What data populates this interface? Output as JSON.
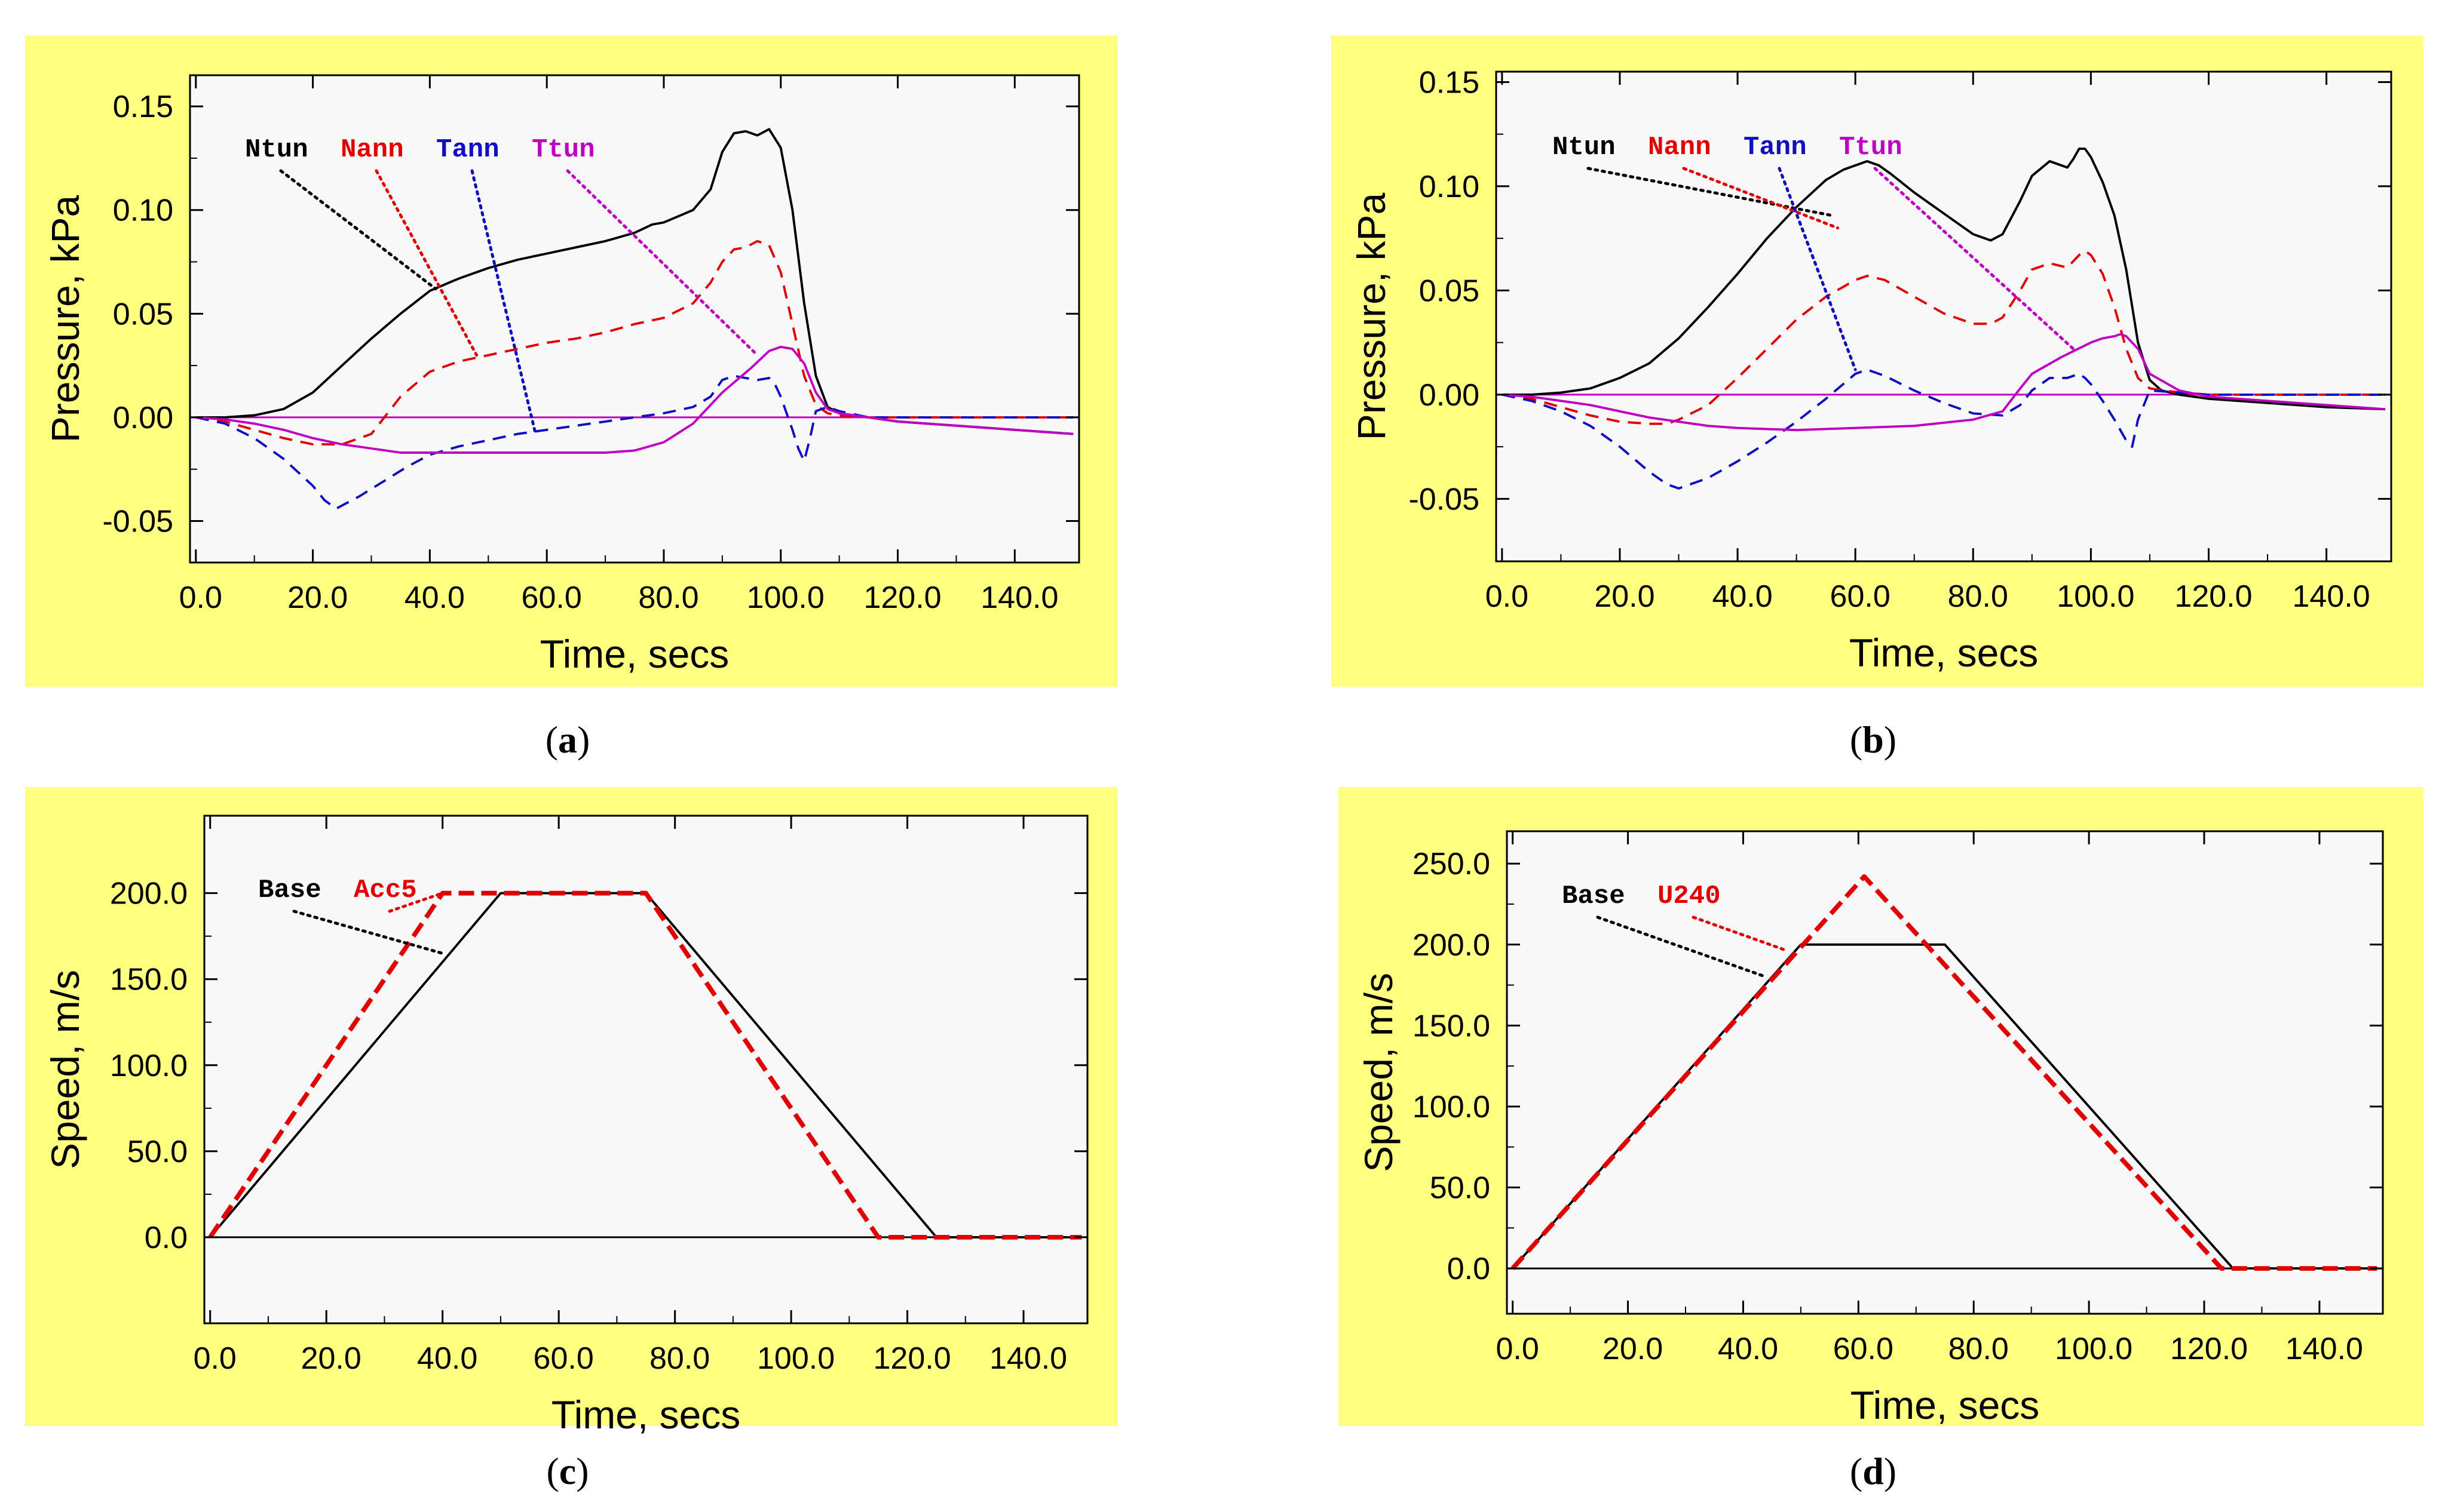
{
  "colors": {
    "panel_bg": "#ffff80",
    "plot_bg": "#f8f8f8",
    "axis": "#000000"
  },
  "chart_data": [
    {
      "type": "line",
      "panel": "a",
      "caption_letter": "a",
      "xlabel": "Time, secs",
      "ylabel": "Pressure, kPa",
      "xlim": [
        -1,
        151
      ],
      "ylim": [
        -0.07,
        0.165
      ],
      "xticks": [
        0,
        20,
        40,
        60,
        80,
        100,
        120,
        140
      ],
      "xtick_labels": [
        "0.0",
        "20.0",
        "40.0",
        "60.0",
        "80.0",
        "100.0",
        "120.0",
        "140.0"
      ],
      "yticks": [
        -0.05,
        0,
        0.05,
        0.1,
        0.15
      ],
      "ytick_labels": [
        "-0.05",
        "0.00",
        "0.05",
        "0.10",
        "0.15"
      ],
      "series": [
        {
          "name": "Ntun",
          "color": "#000000",
          "dash": "solid",
          "width": 1.5,
          "x": [
            0,
            5,
            10,
            15,
            20,
            25,
            30,
            35,
            40,
            45,
            50,
            55,
            60,
            65,
            70,
            75,
            78,
            80,
            85,
            88,
            90,
            92,
            94,
            96,
            98,
            100,
            102,
            104,
            106,
            108,
            110,
            115,
            120,
            130,
            140,
            150
          ],
          "y": [
            0,
            0,
            0.001,
            0.004,
            0.012,
            0.025,
            0.038,
            0.05,
            0.061,
            0.067,
            0.072,
            0.076,
            0.079,
            0.082,
            0.085,
            0.089,
            0.093,
            0.094,
            0.1,
            0.11,
            0.128,
            0.137,
            0.138,
            0.136,
            0.139,
            0.13,
            0.1,
            0.055,
            0.02,
            0.005,
            0.002,
            0,
            -0.002,
            -0.004,
            -0.006,
            -0.008
          ]
        },
        {
          "name": "Nann",
          "color": "#e00000",
          "dash": "dashed",
          "width": 1.5,
          "x": [
            0,
            5,
            10,
            15,
            20,
            25,
            30,
            35,
            40,
            45,
            50,
            55,
            60,
            65,
            70,
            75,
            80,
            85,
            88,
            90,
            92,
            94,
            96,
            98,
            100,
            102,
            104,
            106,
            108,
            110,
            115,
            120,
            150
          ],
          "y": [
            0,
            -0.002,
            -0.006,
            -0.01,
            -0.013,
            -0.013,
            -0.008,
            0.01,
            0.022,
            0.027,
            0.03,
            0.033,
            0.036,
            0.038,
            0.041,
            0.045,
            0.048,
            0.055,
            0.065,
            0.075,
            0.081,
            0.082,
            0.085,
            0.083,
            0.07,
            0.045,
            0.02,
            0.006,
            0.002,
            0.001,
            0,
            0,
            0
          ]
        },
        {
          "name": "Tann",
          "color": "#1010c0",
          "dash": "dashed",
          "width": 1.5,
          "x": [
            0,
            5,
            10,
            15,
            20,
            22,
            24,
            28,
            32,
            36,
            40,
            45,
            50,
            55,
            60,
            65,
            70,
            75,
            80,
            85,
            88,
            90,
            92,
            94,
            96,
            98,
            99,
            100,
            101,
            102,
            103,
            104,
            105,
            106,
            108,
            110,
            115,
            120,
            150
          ],
          "y": [
            0,
            -0.003,
            -0.01,
            -0.02,
            -0.033,
            -0.04,
            -0.044,
            -0.038,
            -0.031,
            -0.024,
            -0.018,
            -0.014,
            -0.011,
            -0.008,
            -0.006,
            -0.004,
            -0.002,
            0,
            0.002,
            0.005,
            0.01,
            0.018,
            0.02,
            0.019,
            0.018,
            0.019,
            0.016,
            0.01,
            0.002,
            -0.006,
            -0.015,
            -0.021,
            -0.01,
            0.003,
            0.005,
            0.003,
            0,
            0,
            0
          ]
        },
        {
          "name": "Ttun",
          "color": "#c000c0",
          "dash": "solid",
          "width": 1.5,
          "x": [
            0,
            5,
            10,
            15,
            20,
            25,
            30,
            35,
            40,
            50,
            60,
            70,
            75,
            80,
            85,
            90,
            95,
            98,
            100,
            102,
            104,
            106,
            108,
            110,
            115,
            120,
            130,
            140,
            150
          ],
          "y": [
            0,
            -0.001,
            -0.003,
            -0.006,
            -0.01,
            -0.013,
            -0.015,
            -0.017,
            -0.017,
            -0.017,
            -0.017,
            -0.017,
            -0.016,
            -0.012,
            -0.003,
            0.012,
            0.024,
            0.032,
            0.034,
            0.033,
            0.026,
            0.012,
            0.004,
            0.002,
            0,
            -0.002,
            -0.004,
            -0.006,
            -0.008
          ]
        }
      ],
      "hline": {
        "y": 0,
        "color": "#c000c0"
      },
      "legend": [
        {
          "name": "Ntun",
          "color": "#000000",
          "target": [
            41,
            0.062
          ]
        },
        {
          "name": "Nann",
          "color": "#e00000",
          "target": [
            48,
            0.03
          ]
        },
        {
          "name": "Tann",
          "color": "#1010c0",
          "target": [
            58,
            -0.007
          ]
        },
        {
          "name": "Ttun",
          "color": "#c000c0",
          "target": [
            96,
            0.03
          ]
        }
      ]
    },
    {
      "type": "line",
      "panel": "b",
      "caption_letter": "b",
      "xlabel": "Time, secs",
      "ylabel": "Pressure, kPa",
      "xlim": [
        -1,
        151
      ],
      "ylim": [
        -0.08,
        0.155
      ],
      "xticks": [
        0,
        20,
        40,
        60,
        80,
        100,
        120,
        140
      ],
      "xtick_labels": [
        "0.0",
        "20.0",
        "40.0",
        "60.0",
        "80.0",
        "100.0",
        "120.0",
        "140.0"
      ],
      "yticks": [
        -0.05,
        0,
        0.05,
        0.1,
        0.15
      ],
      "ytick_labels": [
        "-0.05",
        "0.00",
        "0.05",
        "0.10",
        "0.15"
      ],
      "series": [
        {
          "name": "Ntun",
          "color": "#000000",
          "dash": "solid",
          "width": 1.5,
          "x": [
            0,
            5,
            10,
            15,
            20,
            25,
            30,
            35,
            40,
            45,
            50,
            55,
            58,
            60,
            62,
            64,
            66,
            70,
            75,
            80,
            83,
            85,
            88,
            90,
            93,
            96,
            97,
            98,
            99,
            100,
            102,
            104,
            106,
            108,
            110,
            112,
            115,
            120,
            130,
            140,
            150
          ],
          "y": [
            0,
            0,
            0.001,
            0.003,
            0.008,
            0.015,
            0.027,
            0.042,
            0.058,
            0.075,
            0.09,
            0.103,
            0.108,
            0.11,
            0.112,
            0.11,
            0.106,
            0.097,
            0.087,
            0.077,
            0.074,
            0.077,
            0.093,
            0.105,
            0.112,
            0.109,
            0.113,
            0.118,
            0.118,
            0.114,
            0.102,
            0.086,
            0.06,
            0.025,
            0.007,
            0.002,
            0,
            -0.002,
            -0.004,
            -0.006,
            -0.007
          ]
        },
        {
          "name": "Nann",
          "color": "#e00000",
          "dash": "dashed",
          "width": 1.5,
          "x": [
            0,
            5,
            10,
            15,
            20,
            25,
            28,
            30,
            35,
            40,
            45,
            50,
            55,
            60,
            62,
            65,
            70,
            75,
            80,
            83,
            85,
            88,
            90,
            93,
            96,
            98,
            99,
            100,
            102,
            104,
            106,
            108,
            110,
            115,
            120,
            150
          ],
          "y": [
            0,
            -0.002,
            -0.006,
            -0.01,
            -0.013,
            -0.014,
            -0.014,
            -0.012,
            -0.005,
            0.008,
            0.022,
            0.036,
            0.047,
            0.055,
            0.057,
            0.055,
            0.047,
            0.039,
            0.034,
            0.034,
            0.037,
            0.05,
            0.06,
            0.063,
            0.061,
            0.067,
            0.069,
            0.067,
            0.058,
            0.042,
            0.022,
            0.008,
            0.003,
            0.001,
            0,
            0
          ]
        },
        {
          "name": "Tann",
          "color": "#1010c0",
          "dash": "dashed",
          "width": 1.5,
          "x": [
            0,
            5,
            10,
            15,
            20,
            25,
            28,
            30,
            35,
            40,
            45,
            50,
            55,
            60,
            62,
            65,
            70,
            75,
            80,
            85,
            88,
            90,
            93,
            96,
            98,
            99,
            100,
            102,
            104,
            106,
            107,
            108,
            110,
            115,
            120,
            150
          ],
          "y": [
            0,
            -0.003,
            -0.008,
            -0.015,
            -0.025,
            -0.037,
            -0.043,
            -0.045,
            -0.04,
            -0.032,
            -0.023,
            -0.013,
            -0.002,
            0.01,
            0.012,
            0.009,
            0.002,
            -0.004,
            -0.009,
            -0.01,
            -0.005,
            0.002,
            0.008,
            0.008,
            0.01,
            0.008,
            0.005,
            -0.003,
            -0.012,
            -0.022,
            -0.025,
            -0.012,
            0.002,
            0.001,
            0,
            0
          ]
        },
        {
          "name": "Ttun",
          "color": "#c000c0",
          "dash": "solid",
          "width": 1.5,
          "x": [
            0,
            5,
            10,
            15,
            20,
            25,
            30,
            35,
            40,
            50,
            60,
            70,
            80,
            85,
            88,
            90,
            95,
            100,
            102,
            104,
            105,
            106,
            108,
            110,
            115,
            120,
            130,
            140,
            150
          ],
          "y": [
            0,
            -0.001,
            -0.003,
            -0.005,
            -0.008,
            -0.011,
            -0.013,
            -0.015,
            -0.016,
            -0.017,
            -0.016,
            -0.015,
            -0.012,
            -0.008,
            0.003,
            0.01,
            0.018,
            0.025,
            0.027,
            0.028,
            0.029,
            0.028,
            0.022,
            0.01,
            0.002,
            -0.001,
            -0.003,
            -0.005,
            -0.007
          ]
        }
      ],
      "hline": {
        "y": 0,
        "color": "#c000c0"
      },
      "legend": [
        {
          "name": "Ntun",
          "color": "#000000",
          "target": [
            56,
            0.086
          ]
        },
        {
          "name": "Nann",
          "color": "#e00000",
          "target": [
            57,
            0.08
          ]
        },
        {
          "name": "Tann",
          "color": "#1010c0",
          "target": [
            60,
            0.012
          ]
        },
        {
          "name": "Ttun",
          "color": "#c000c0",
          "target": [
            97,
            0.022
          ]
        }
      ]
    },
    {
      "type": "line",
      "panel": "c",
      "caption_letter": "c",
      "xlabel": "Time, secs",
      "ylabel": "Speed, m/s",
      "xlim": [
        -1,
        151
      ],
      "ylim": [
        -50,
        245
      ],
      "xticks": [
        0,
        20,
        40,
        60,
        80,
        100,
        120,
        140
      ],
      "xtick_labels": [
        "0.0",
        "20.0",
        "40.0",
        "60.0",
        "80.0",
        "100.0",
        "120.0",
        "140.0"
      ],
      "yticks": [
        0,
        50,
        100,
        150,
        200
      ],
      "ytick_labels": [
        "0.0",
        "50.0",
        "100.0",
        "150.0",
        "200.0"
      ],
      "series": [
        {
          "name": "Base",
          "color": "#000000",
          "dash": "solid",
          "width": 1.5,
          "x": [
            0,
            50,
            75,
            125,
            150
          ],
          "y": [
            0,
            200,
            200,
            0,
            0
          ]
        },
        {
          "name": "Acc5",
          "color": "#e00000",
          "dash": "dashed",
          "width": 3,
          "x": [
            0,
            40,
            75,
            115,
            150
          ],
          "y": [
            0,
            200,
            200,
            0,
            0
          ]
        }
      ],
      "hline": {
        "y": 0,
        "color": "#000000"
      },
      "legend": [
        {
          "name": "Base",
          "color": "#000000",
          "target": [
            40,
            165
          ]
        },
        {
          "name": "Acc5",
          "color": "#e00000",
          "target": [
            40,
            200
          ]
        }
      ]
    },
    {
      "type": "line",
      "panel": "d",
      "caption_letter": "d",
      "xlabel": "Time, secs",
      "ylabel": "Speed, m/s",
      "xlim": [
        -1,
        151
      ],
      "ylim": [
        -28,
        270
      ],
      "xticks": [
        0,
        20,
        40,
        60,
        80,
        100,
        120,
        140
      ],
      "xtick_labels": [
        "0.0",
        "20.0",
        "40.0",
        "60.0",
        "80.0",
        "100.0",
        "120.0",
        "140.0"
      ],
      "yticks": [
        0,
        50,
        100,
        150,
        200,
        250
      ],
      "ytick_labels": [
        "0.0",
        "50.0",
        "100.0",
        "150.0",
        "200.0",
        "250.0"
      ],
      "series": [
        {
          "name": "Base",
          "color": "#000000",
          "dash": "solid",
          "width": 1.5,
          "x": [
            0,
            50,
            75,
            125,
            150
          ],
          "y": [
            0,
            200,
            200,
            0,
            0
          ]
        },
        {
          "name": "U240",
          "color": "#e00000",
          "dash": "dashed",
          "width": 3,
          "x": [
            0,
            61,
            123,
            150
          ],
          "y": [
            0,
            242,
            0,
            0
          ]
        }
      ],
      "hline": {
        "y": 0,
        "color": "#000000"
      },
      "legend": [
        {
          "name": "Base",
          "color": "#000000",
          "target": [
            44,
            180
          ]
        },
        {
          "name": "U240",
          "color": "#e00000",
          "target": [
            47,
            197
          ]
        }
      ]
    }
  ]
}
